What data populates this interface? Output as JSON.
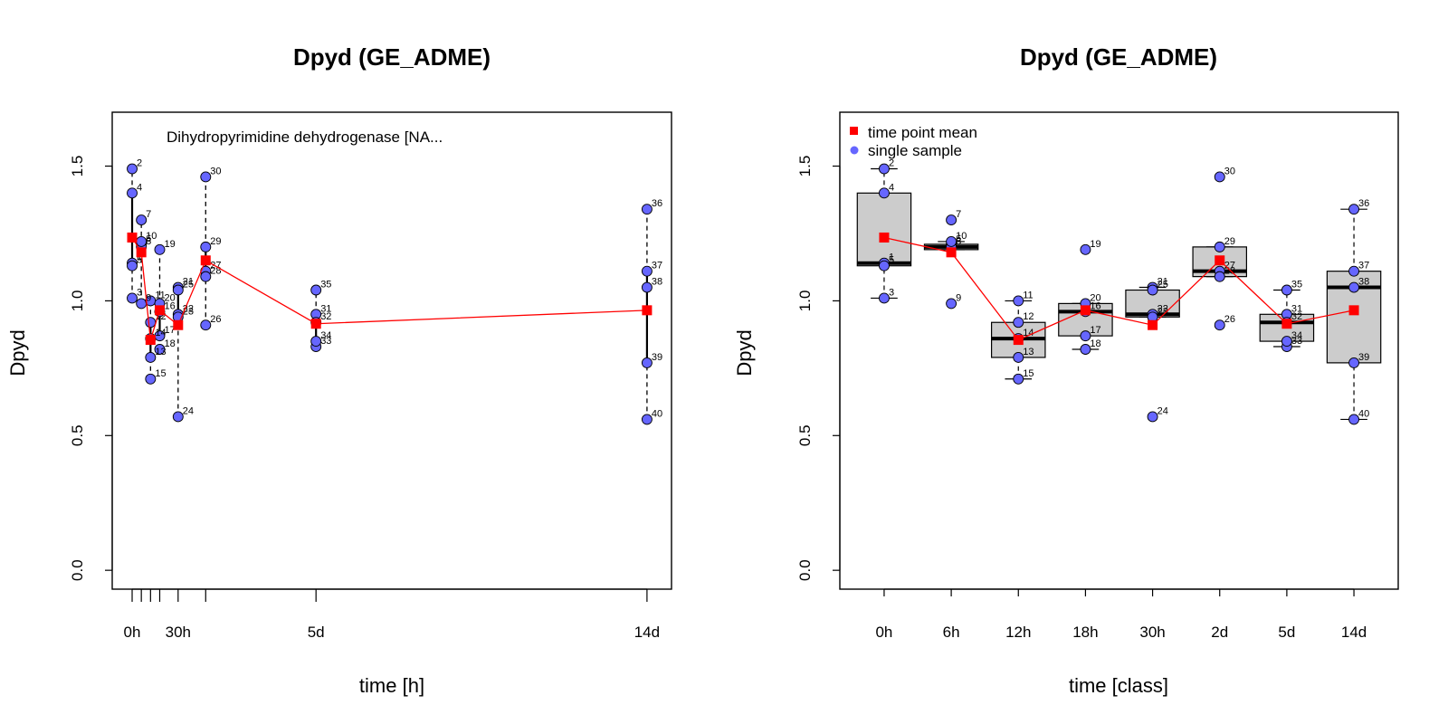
{
  "chart_data": [
    {
      "type": "scatter",
      "title": "Dpyd (GE_ADME)",
      "xlabel": "time [h]",
      "ylabel": "Dpyd",
      "annotation": "Dihydropyrimidine dehydrogenase [NA...",
      "ylim": [
        -0.07,
        1.7
      ],
      "xlim": [
        -13,
        352
      ],
      "yticks": [
        0.0,
        0.5,
        1.0,
        1.5
      ],
      "ytick_labels": [
        "0.0",
        "0.5",
        "1.0",
        "1.5"
      ],
      "xticks": [
        0,
        6,
        12,
        18,
        30,
        48,
        120,
        336
      ],
      "xtick_labels": [
        {
          "x": 0,
          "label": "0h"
        },
        {
          "x": 30,
          "label": "30h"
        },
        {
          "x": 120,
          "label": "5d"
        },
        {
          "x": 336,
          "label": "14d"
        }
      ],
      "groups": [
        {
          "x": 0,
          "solid": [
            1.13,
            1.4
          ],
          "dashed": [
            [
              1.01,
              1.13
            ],
            [
              1.4,
              1.49
            ]
          ],
          "mean": 1.235
        },
        {
          "x": 6,
          "solid": [
            1.19,
            1.21
          ],
          "dashed": [
            [
              0.99,
              1.19
            ],
            [
              1.21,
              1.3
            ]
          ],
          "mean": 1.18
        },
        {
          "x": 12,
          "solid": [
            0.79,
            0.92
          ],
          "dashed": [
            [
              0.71,
              0.79
            ],
            [
              0.92,
              1.0
            ]
          ],
          "mean": 0.855
        },
        {
          "x": 18,
          "solid": [
            0.87,
            0.99
          ],
          "dashed": [
            [
              0.82,
              0.87
            ],
            [
              0.99,
              1.19
            ]
          ],
          "mean": 0.965
        },
        {
          "x": 30,
          "solid": [
            0.94,
            1.04
          ],
          "dashed": [
            [
              0.57,
              0.94
            ],
            [
              1.04,
              1.05
            ]
          ],
          "mean": 0.91
        },
        {
          "x": 48,
          "solid": [
            1.09,
            1.2
          ],
          "dashed": [
            [
              0.91,
              1.09
            ],
            [
              1.2,
              1.46
            ]
          ],
          "mean": 1.15
        },
        {
          "x": 120,
          "solid": [
            0.85,
            0.95
          ],
          "dashed": [
            [
              0.83,
              0.85
            ],
            [
              0.95,
              1.04
            ]
          ],
          "mean": 0.915
        },
        {
          "x": 336,
          "solid": [
            0.77,
            1.11
          ],
          "dashed": [
            [
              0.56,
              0.77
            ],
            [
              1.11,
              1.34
            ]
          ],
          "mean": 0.965
        }
      ],
      "points": [
        {
          "id": "1",
          "x": 0,
          "y": 1.14
        },
        {
          "id": "2",
          "x": 0,
          "y": 1.49
        },
        {
          "id": "3",
          "x": 0,
          "y": 1.01
        },
        {
          "id": "4",
          "x": 0,
          "y": 1.4
        },
        {
          "id": "5",
          "x": 0,
          "y": 1.13
        },
        {
          "id": "6",
          "x": 6,
          "y": 1.21
        },
        {
          "id": "7",
          "x": 6,
          "y": 1.3
        },
        {
          "id": "8",
          "x": 6,
          "y": 1.2
        },
        {
          "id": "9",
          "x": 6,
          "y": 0.99
        },
        {
          "id": "10",
          "x": 6,
          "y": 1.22
        },
        {
          "id": "11",
          "x": 12,
          "y": 1.0
        },
        {
          "id": "12",
          "x": 12,
          "y": 0.92
        },
        {
          "id": "13",
          "x": 12,
          "y": 0.79
        },
        {
          "id": "14",
          "x": 12,
          "y": 0.86
        },
        {
          "id": "15",
          "x": 12,
          "y": 0.71
        },
        {
          "id": "16",
          "x": 18,
          "y": 0.96
        },
        {
          "id": "17",
          "x": 18,
          "y": 0.87
        },
        {
          "id": "18",
          "x": 18,
          "y": 0.82
        },
        {
          "id": "19",
          "x": 18,
          "y": 1.19
        },
        {
          "id": "20",
          "x": 18,
          "y": 0.99
        },
        {
          "id": "21",
          "x": 30,
          "y": 1.05
        },
        {
          "id": "22",
          "x": 30,
          "y": 0.95
        },
        {
          "id": "23",
          "x": 30,
          "y": 0.94
        },
        {
          "id": "24",
          "x": 30,
          "y": 0.57
        },
        {
          "id": "25",
          "x": 30,
          "y": 1.04
        },
        {
          "id": "26",
          "x": 48,
          "y": 0.91
        },
        {
          "id": "27",
          "x": 48,
          "y": 1.11
        },
        {
          "id": "28",
          "x": 48,
          "y": 1.09
        },
        {
          "id": "29",
          "x": 48,
          "y": 1.2
        },
        {
          "id": "30",
          "x": 48,
          "y": 1.46
        },
        {
          "id": "31",
          "x": 120,
          "y": 0.95
        },
        {
          "id": "32",
          "x": 120,
          "y": 0.92
        },
        {
          "id": "33",
          "x": 120,
          "y": 0.83
        },
        {
          "id": "34",
          "x": 120,
          "y": 0.85
        },
        {
          "id": "35",
          "x": 120,
          "y": 1.04
        },
        {
          "id": "36",
          "x": 336,
          "y": 1.34
        },
        {
          "id": "37",
          "x": 336,
          "y": 1.11
        },
        {
          "id": "38",
          "x": 336,
          "y": 1.05
        },
        {
          "id": "39",
          "x": 336,
          "y": 0.77
        },
        {
          "id": "40",
          "x": 336,
          "y": 0.56
        }
      ],
      "colors": {
        "point_fill": "#6666ff",
        "point_edge": "#000000",
        "mean": "#ff0000",
        "mean_line": "#ff0000"
      }
    },
    {
      "type": "box",
      "title": "Dpyd (GE_ADME)",
      "xlabel": "time [class]",
      "ylabel": "Dpyd",
      "ylim": [
        -0.07,
        1.7
      ],
      "yticks": [
        0.0,
        0.5,
        1.0,
        1.5
      ],
      "ytick_labels": [
        "0.0",
        "0.5",
        "1.0",
        "1.5"
      ],
      "categories": [
        "0h",
        "6h",
        "12h",
        "18h",
        "30h",
        "2d",
        "5d",
        "14d"
      ],
      "legend": {
        "placement": "top-left",
        "entries": [
          "time point mean",
          "single sample"
        ]
      },
      "boxes": [
        {
          "q1": 1.13,
          "median": 1.14,
          "q3": 1.4,
          "whisker_low": 1.01,
          "whisker_high": 1.49
        },
        {
          "q1": 1.19,
          "median": 1.2,
          "q3": 1.21,
          "whisker_low": 1.19,
          "whisker_high": 1.22
        },
        {
          "q1": 0.79,
          "median": 0.86,
          "q3": 0.92,
          "whisker_low": 0.71,
          "whisker_high": 1.0
        },
        {
          "q1": 0.87,
          "median": 0.96,
          "q3": 0.99,
          "whisker_low": 0.82,
          "whisker_high": 0.99
        },
        {
          "q1": 0.94,
          "median": 0.95,
          "q3": 1.04,
          "whisker_low": 0.94,
          "whisker_high": 1.05
        },
        {
          "q1": 1.09,
          "median": 1.11,
          "q3": 1.2,
          "whisker_low": 1.09,
          "whisker_high": 1.2
        },
        {
          "q1": 0.85,
          "median": 0.92,
          "q3": 0.95,
          "whisker_low": 0.83,
          "whisker_high": 1.04
        },
        {
          "q1": 0.77,
          "median": 1.05,
          "q3": 1.11,
          "whisker_low": 0.56,
          "whisker_high": 1.34
        }
      ],
      "means": [
        1.235,
        1.18,
        0.855,
        0.965,
        0.91,
        1.15,
        0.915,
        0.965
      ],
      "points": [
        {
          "id": "1",
          "c": 0,
          "y": 1.14
        },
        {
          "id": "2",
          "c": 0,
          "y": 1.49
        },
        {
          "id": "3",
          "c": 0,
          "y": 1.01
        },
        {
          "id": "4",
          "c": 0,
          "y": 1.4
        },
        {
          "id": "5",
          "c": 0,
          "y": 1.13
        },
        {
          "id": "6",
          "c": 1,
          "y": 1.21
        },
        {
          "id": "7",
          "c": 1,
          "y": 1.3
        },
        {
          "id": "8",
          "c": 1,
          "y": 1.2
        },
        {
          "id": "9",
          "c": 1,
          "y": 0.99
        },
        {
          "id": "10",
          "c": 1,
          "y": 1.22
        },
        {
          "id": "11",
          "c": 2,
          "y": 1.0
        },
        {
          "id": "12",
          "c": 2,
          "y": 0.92
        },
        {
          "id": "13",
          "c": 2,
          "y": 0.79
        },
        {
          "id": "14",
          "c": 2,
          "y": 0.86
        },
        {
          "id": "15",
          "c": 2,
          "y": 0.71
        },
        {
          "id": "16",
          "c": 3,
          "y": 0.96
        },
        {
          "id": "17",
          "c": 3,
          "y": 0.87
        },
        {
          "id": "18",
          "c": 3,
          "y": 0.82
        },
        {
          "id": "19",
          "c": 3,
          "y": 1.19
        },
        {
          "id": "20",
          "c": 3,
          "y": 0.99
        },
        {
          "id": "21",
          "c": 4,
          "y": 1.05
        },
        {
          "id": "22",
          "c": 4,
          "y": 0.95
        },
        {
          "id": "23",
          "c": 4,
          "y": 0.94
        },
        {
          "id": "24",
          "c": 4,
          "y": 0.57
        },
        {
          "id": "25",
          "c": 4,
          "y": 1.04
        },
        {
          "id": "26",
          "c": 5,
          "y": 0.91
        },
        {
          "id": "27",
          "c": 5,
          "y": 1.11
        },
        {
          "id": "28",
          "c": 5,
          "y": 1.09
        },
        {
          "id": "29",
          "c": 5,
          "y": 1.2
        },
        {
          "id": "30",
          "c": 5,
          "y": 1.46
        },
        {
          "id": "31",
          "c": 6,
          "y": 0.95
        },
        {
          "id": "32",
          "c": 6,
          "y": 0.92
        },
        {
          "id": "33",
          "c": 6,
          "y": 0.83
        },
        {
          "id": "34",
          "c": 6,
          "y": 0.85
        },
        {
          "id": "35",
          "c": 6,
          "y": 1.04
        },
        {
          "id": "36",
          "c": 7,
          "y": 1.34
        },
        {
          "id": "37",
          "c": 7,
          "y": 1.11
        },
        {
          "id": "38",
          "c": 7,
          "y": 1.05
        },
        {
          "id": "39",
          "c": 7,
          "y": 0.77
        },
        {
          "id": "40",
          "c": 7,
          "y": 0.56
        }
      ],
      "colors": {
        "box_fill": "#cccccc",
        "point_fill": "#6666ff",
        "point_edge": "#000000",
        "mean": "#ff0000",
        "mean_line": "#ff0000"
      }
    }
  ]
}
